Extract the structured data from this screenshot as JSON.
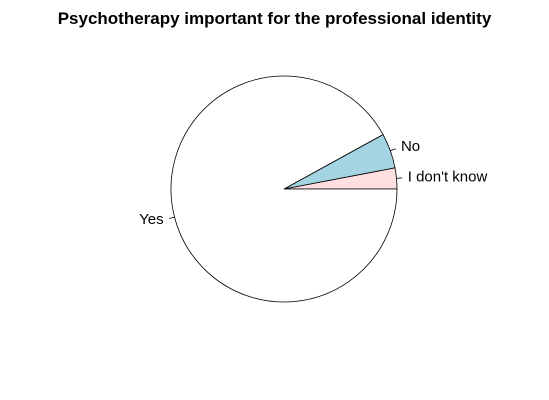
{
  "chart_data": {
    "type": "pie",
    "title": "Psychotherapy important for the professional identity",
    "slices": [
      {
        "label": "I don't know",
        "value": 3,
        "color": "#ffdfdf"
      },
      {
        "label": "No",
        "value": 5,
        "color": "#a4d3e1"
      },
      {
        "label": "Yes",
        "value": 92,
        "color": "#ffffff"
      }
    ],
    "start_angle_deg": 0,
    "direction": "counterclockwise"
  }
}
